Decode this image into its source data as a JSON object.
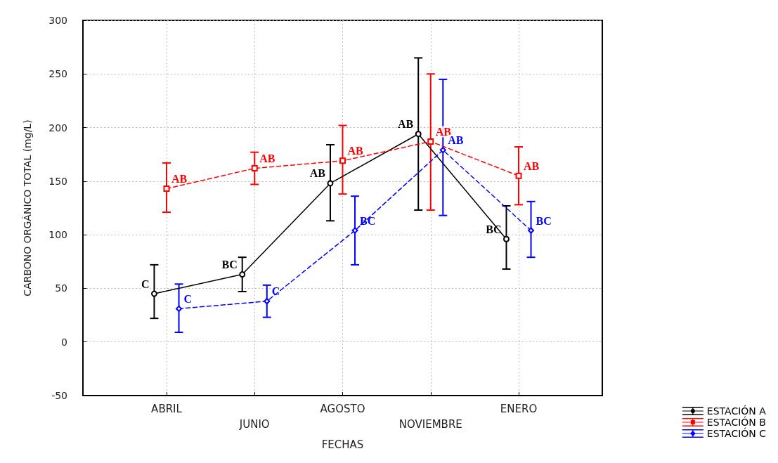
{
  "chart_data": {
    "type": "line",
    "xlabel": "FECHAS",
    "ylabel": "CARBONO ORGÁNICO TOTAL (mg/L)",
    "categories": [
      "ABRIL",
      "JUNIO",
      "AGOSTO",
      "NOVIEMBRE",
      "ENERO"
    ],
    "series": [
      {
        "name": "ESTACIÓN A",
        "color": "#000000",
        "marker": "circle",
        "line_style": "solid",
        "values": [
          45,
          63,
          148,
          194,
          96
        ],
        "errors": [
          [
            22,
            72
          ],
          [
            47,
            79
          ],
          [
            113,
            184
          ],
          [
            123,
            265
          ],
          [
            68,
            127
          ]
        ],
        "value_labels": [
          "C",
          "BC",
          "AB",
          "AB",
          "BC"
        ]
      },
      {
        "name": "ESTACIÓN B",
        "color": "#ff0000",
        "marker": "square",
        "line_style": "dashed",
        "values": [
          143,
          162,
          169,
          187,
          155
        ],
        "errors": [
          [
            121,
            167
          ],
          [
            147,
            177
          ],
          [
            138,
            202
          ],
          [
            123,
            250
          ],
          [
            128,
            182
          ]
        ],
        "value_labels": [
          "AB",
          "AB",
          "AB",
          "AB",
          "AB"
        ]
      },
      {
        "name": "ESTACIÓN C",
        "color": "#0000ff",
        "marker": "diamond",
        "line_style": "dashed",
        "values": [
          31,
          38,
          104,
          179,
          104
        ],
        "errors": [
          [
            9,
            54
          ],
          [
            23,
            53
          ],
          [
            72,
            136
          ],
          [
            118,
            245
          ],
          [
            79,
            131
          ]
        ],
        "value_labels": [
          "C",
          "C",
          "BC",
          "AB",
          "BC"
        ]
      }
    ],
    "ylim": [
      -50,
      300
    ],
    "yticks": [
      -50,
      0,
      50,
      100,
      150,
      200,
      250,
      300
    ],
    "grid": true,
    "legend": "bottom right"
  }
}
